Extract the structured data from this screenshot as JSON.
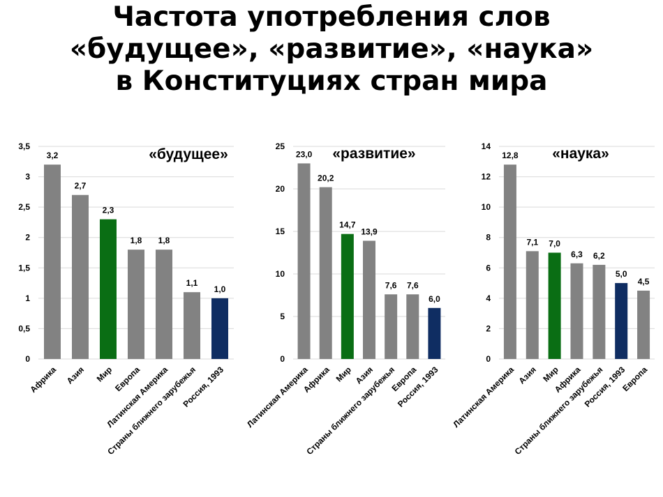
{
  "page_title": {
    "line1": "Частота употребления слов",
    "line2": "«будущее», «развитие», «наука»",
    "line3": "в Конституциях стран мира"
  },
  "colors": {
    "default_bar": "#828282",
    "mir": "#0a6e14",
    "russia": "#0f2d62",
    "grid": "#d9d9d9",
    "axis_text": "#000000"
  },
  "chart_data": [
    {
      "type": "bar",
      "title": "«будущее»",
      "categories": [
        "Африка",
        "Азия",
        "Мир",
        "Европа",
        "Латинская Америка",
        "Страны ближнего зарубежья",
        "Россия, 1993"
      ],
      "values": [
        3.2,
        2.7,
        2.3,
        1.8,
        1.8,
        1.1,
        1.0
      ],
      "labels": [
        "3,2",
        "2,7",
        "2,3",
        "1,8",
        "1,8",
        "1,1",
        "1,0"
      ],
      "ylim": [
        0,
        3.5
      ],
      "yticks": [
        "0",
        "0,5",
        "1",
        "1,5",
        "2",
        "2,5",
        "3",
        "3,5"
      ],
      "grid": true,
      "xlabel": "",
      "ylabel": ""
    },
    {
      "type": "bar",
      "title": "«развитие»",
      "categories": [
        "Латинская Америка",
        "Африка",
        "Мир",
        "Азия",
        "Страны ближнего зарубежья",
        "Европа",
        "Россия, 1993"
      ],
      "values": [
        23.0,
        20.2,
        14.7,
        13.9,
        7.6,
        7.6,
        6.0
      ],
      "labels": [
        "23,0",
        "20,2",
        "14,7",
        "13,9",
        "7,6",
        "7,6",
        "6,0"
      ],
      "ylim": [
        0,
        25
      ],
      "yticks": [
        "0",
        "5",
        "10",
        "15",
        "20",
        "25"
      ],
      "grid": true,
      "xlabel": "",
      "ylabel": ""
    },
    {
      "type": "bar",
      "title": "«наука»",
      "categories": [
        "Латинская Америка",
        "Азия",
        "Мир",
        "Африка",
        "Страны ближнего зарубежья",
        "Россия, 1993",
        "Европа"
      ],
      "values": [
        12.8,
        7.1,
        7.0,
        6.3,
        6.2,
        5.0,
        4.5
      ],
      "labels": [
        "12,8",
        "7,1",
        "7,0",
        "6,3",
        "6,2",
        "5,0",
        "4,5"
      ],
      "ylim": [
        0,
        14
      ],
      "yticks": [
        "0",
        "2",
        "4",
        "6",
        "8",
        "10",
        "12",
        "14"
      ],
      "grid": true,
      "xlabel": "",
      "ylabel": ""
    }
  ]
}
